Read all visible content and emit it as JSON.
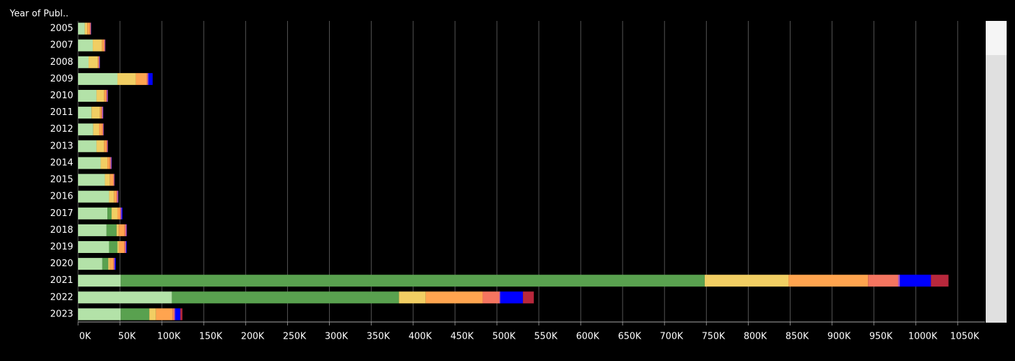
{
  "chart_data": {
    "type": "stacked-bar-horizontal",
    "y_axis_title": "Year of Publ..",
    "categories": [
      "2005",
      "2007",
      "2008",
      "2009",
      "2010",
      "2011",
      "2012",
      "2013",
      "2014",
      "2015",
      "2016",
      "2017",
      "2018",
      "2019",
      "2020",
      "2021",
      "2022",
      "2023"
    ],
    "series": [
      {
        "color": "#b3e2a8",
        "values": [
          8000,
          17500,
          12500,
          47000,
          22000,
          16000,
          18000,
          22000,
          27000,
          32000,
          37000,
          35000,
          34000,
          37000,
          29000,
          51000,
          112000,
          51000
        ]
      },
      {
        "color": "#59a14f",
        "values": [
          0,
          0,
          0,
          0,
          0,
          0,
          0,
          0,
          0,
          0,
          0,
          5000,
          12000,
          10000,
          7000,
          697000,
          271000,
          34000
        ]
      },
      {
        "color": "#f1ce63",
        "values": [
          3000,
          11000,
          11000,
          22000,
          9000,
          10000,
          7000,
          9000,
          8000,
          6000,
          6000,
          7000,
          2500,
          2000,
          2000,
          100000,
          32000,
          8000
        ]
      },
      {
        "color": "#ffa44f",
        "values": [
          3000,
          2500,
          1000,
          13000,
          2500,
          2000,
          4000,
          3000,
          3000,
          4000,
          3000,
          3000,
          7000,
          6000,
          4000,
          95000,
          68000,
          20000
        ]
      },
      {
        "color": "#f47560",
        "values": [
          1000,
          1000,
          500,
          1000,
          1000,
          1000,
          1000,
          1000,
          1000,
          1000,
          1000,
          1000,
          1500,
          1500,
          1000,
          36000,
          20000,
          2000
        ]
      },
      {
        "color": "#9c52d8",
        "values": [
          500,
          500,
          1000,
          1000,
          1000,
          1000,
          500,
          500,
          1000,
          500,
          1000,
          1000,
          1000,
          1000,
          1000,
          2000,
          1000,
          1000
        ]
      },
      {
        "color": "#0000ff",
        "values": [
          0,
          0,
          0,
          5000,
          0,
          0,
          0,
          0,
          0,
          0,
          0,
          1000,
          0,
          500,
          1000,
          37000,
          27000,
          6000
        ]
      },
      {
        "color": "#b8283c",
        "values": [
          0,
          0,
          0,
          0,
          0,
          0,
          0,
          0,
          0,
          0,
          0,
          0,
          0,
          0,
          0,
          21000,
          13000,
          2500
        ]
      }
    ],
    "xlim": [
      0,
      1082600
    ],
    "xticks": [
      {
        "value": 0,
        "label": "0K"
      },
      {
        "value": 50000,
        "label": "50K"
      },
      {
        "value": 100000,
        "label": "100K"
      },
      {
        "value": 150000,
        "label": "150K"
      },
      {
        "value": 200000,
        "label": "200K"
      },
      {
        "value": 250000,
        "label": "250K"
      },
      {
        "value": 300000,
        "label": "300K"
      },
      {
        "value": 350000,
        "label": "350K"
      },
      {
        "value": 400000,
        "label": "400K"
      },
      {
        "value": 450000,
        "label": "450K"
      },
      {
        "value": 500000,
        "label": "500K"
      },
      {
        "value": 550000,
        "label": "550K"
      },
      {
        "value": 600000,
        "label": "600K"
      },
      {
        "value": 650000,
        "label": "650K"
      },
      {
        "value": 700000,
        "label": "700K"
      },
      {
        "value": 750000,
        "label": "750K"
      },
      {
        "value": 800000,
        "label": "800K"
      },
      {
        "value": 850000,
        "label": "850K"
      },
      {
        "value": 900000,
        "label": "900K"
      },
      {
        "value": 950000,
        "label": "950K"
      },
      {
        "value": 1000000,
        "label": "1000K"
      },
      {
        "value": 1050000,
        "label": "1050K"
      }
    ],
    "grid": true
  }
}
